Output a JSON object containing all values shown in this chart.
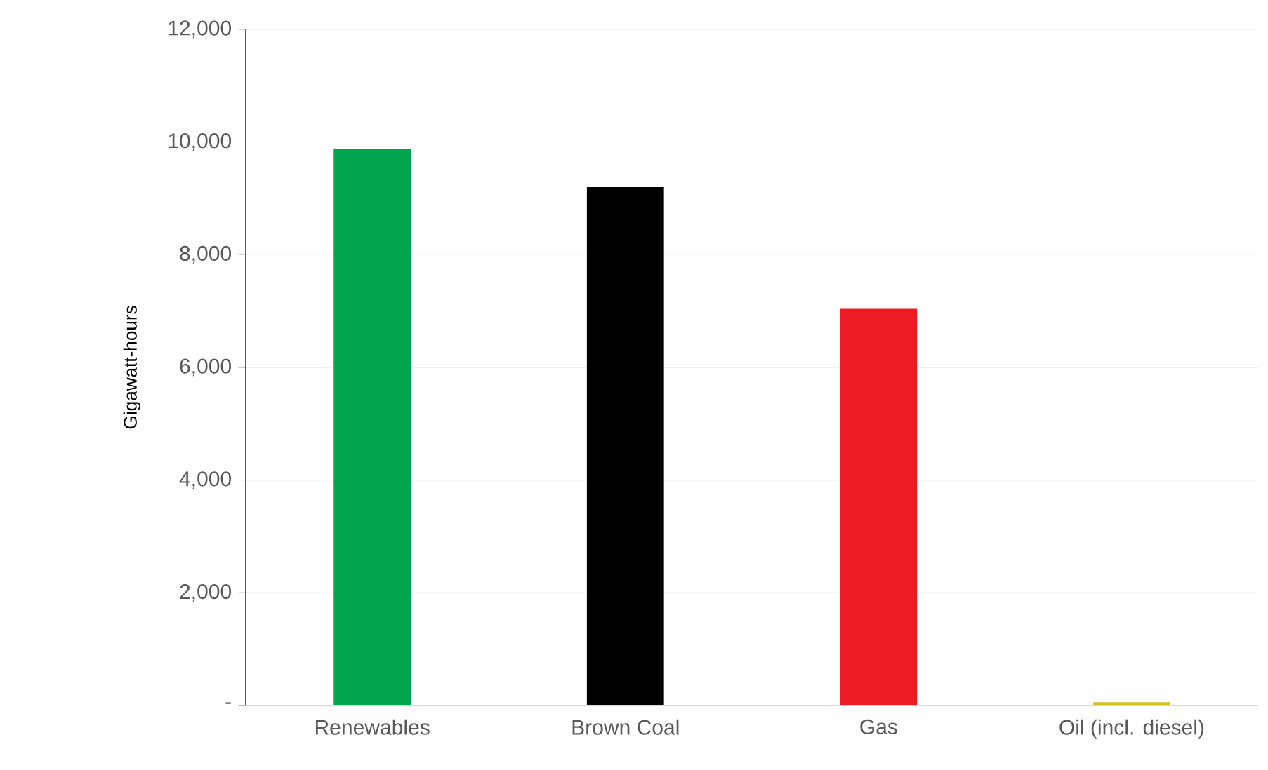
{
  "chart_data": {
    "type": "bar",
    "ylabel": "Gigawatt-hours",
    "categories": [
      "Renewables",
      "Brown Coal",
      "Gas",
      "Oil (incl. diesel)"
    ],
    "values": [
      9870,
      9200,
      7050,
      60
    ],
    "colors": [
      "#00a34e",
      "#000000",
      "#ed1c24",
      "#d4c21a"
    ],
    "ylim": [
      0,
      12000
    ],
    "yticks": [
      {
        "value": 0,
        "label": "-"
      },
      {
        "value": 2000,
        "label": "2,000"
      },
      {
        "value": 4000,
        "label": "4,000"
      },
      {
        "value": 6000,
        "label": "6,000"
      },
      {
        "value": 8000,
        "label": "8,000"
      },
      {
        "value": 10000,
        "label": "10,000"
      },
      {
        "value": 12000,
        "label": "12,000"
      }
    ],
    "grid": "y"
  }
}
